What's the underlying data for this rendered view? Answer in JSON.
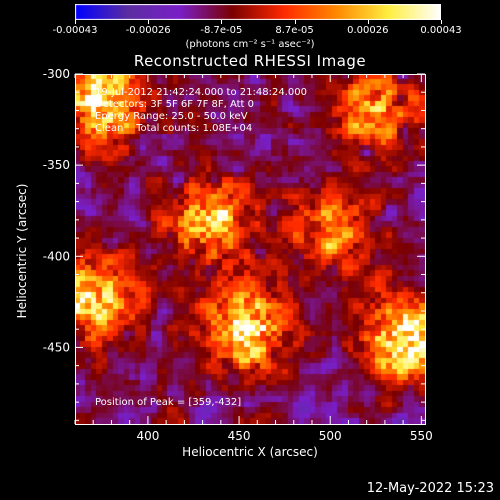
{
  "colorbar": {
    "tick_labels": [
      "-0.00043",
      "-0.00026",
      "-8.7e-05",
      "8.7e-05",
      "0.00026",
      "0.00043"
    ],
    "unit_label": "(photons cm⁻² s⁻¹ asec⁻²)",
    "colors": [
      "#0000ff",
      "#5b2ea0",
      "#7a1ec8",
      "#7a0000",
      "#ff2a00",
      "#ff8800",
      "#ffee40",
      "#ffffff"
    ]
  },
  "header": {
    "title": "Reconstructed RHESSI Image",
    "info_lines": [
      "19-Jul-2012 21:42:24.000 to 21:48:24.000",
      "Detectors: 3F 5F 6F 7F 8F, Att 0",
      "Energy Range: 25.0 - 50.0 keV",
      "Clean    Total counts: 1.08E+04"
    ],
    "peak_text": "Position of Peak = [359,-432]"
  },
  "footer": {
    "timestamp": "12-May-2022 15:23"
  },
  "chart_data": {
    "type": "heatmap",
    "title": "Reconstructed RHESSI Image",
    "xlabel": "Heliocentric X (arcsec)",
    "ylabel": "Heliocentric Y (arcsec)",
    "xlim": [
      360,
      552
    ],
    "ylim": [
      -492,
      -300
    ],
    "xticks": [
      400,
      450,
      500,
      550
    ],
    "yticks": [
      -300,
      -350,
      -400,
      -450
    ],
    "value_range": [
      -0.00043,
      0.00043
    ],
    "peak_position": [
      359,
      -432
    ],
    "bright_regions": [
      {
        "x": 375,
        "y": -315,
        "level": 0.00043
      },
      {
        "x": 435,
        "y": -382,
        "level": 0.00035
      },
      {
        "x": 455,
        "y": -440,
        "level": 0.0004
      },
      {
        "x": 540,
        "y": -445,
        "level": 0.00043
      },
      {
        "x": 368,
        "y": -425,
        "level": 0.00038
      },
      {
        "x": 525,
        "y": -320,
        "level": 0.0003
      },
      {
        "x": 500,
        "y": -385,
        "level": 0.00026
      }
    ]
  }
}
